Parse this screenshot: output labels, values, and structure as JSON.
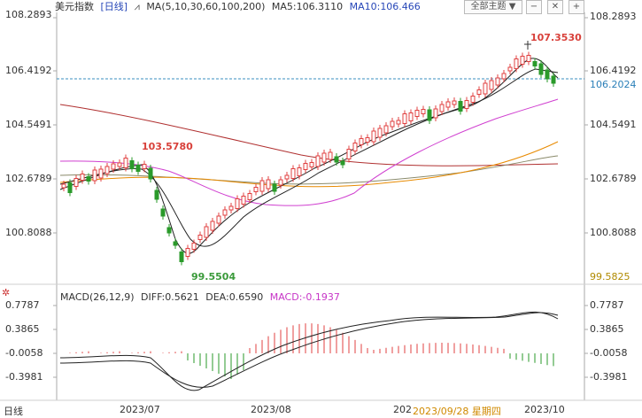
{
  "header": {
    "instrument": "美元指数",
    "period_tag": "[日线]",
    "ma_params": "MA(5,10,30,60,100,200)",
    "ma5": "MA5:106.3110",
    "ma10": "MA10:106.466",
    "theme_dropdown": "全部主题 ▼"
  },
  "price_axis": {
    "left_ticks": [
      "108.2893",
      "106.4192",
      "104.5491",
      "102.6789",
      "100.8088"
    ],
    "right_ticks": [
      "108.2893",
      "106.4192",
      "104.5491",
      "102.6789",
      "100.8088"
    ],
    "current_price_tag": "106.2024",
    "low_tag": "99.5825"
  },
  "annotations": {
    "high_main": "107.3530",
    "high_july": "103.5780",
    "low_july": "99.5504"
  },
  "macd": {
    "title": "MACD(26,12,9)",
    "diff": "DIFF:0.5621",
    "dea": "DEA:0.6590",
    "macd": "MACD:-0.1937",
    "left_ticks": [
      "0.7787",
      "0.3865",
      "-0.0058",
      "-0.3981"
    ],
    "right_ticks": [
      "0.7787",
      "0.3865",
      "-0.0058",
      "-0.3981"
    ]
  },
  "time_axis": {
    "period_button": "日线",
    "labels": [
      "2023/07",
      "2023/08",
      "202",
      "2023/09/28 星期四",
      "2023/10"
    ]
  },
  "colors": {
    "up": "#e04040",
    "down": "#2a9a2a",
    "ma5": "#222222",
    "ma10": "#222222",
    "ma30": "#d040d0",
    "ma60": "#e88a00",
    "ma100": "#8a8a6a",
    "ma200": "#b03030",
    "price_line": "#3a8fbf"
  }
}
